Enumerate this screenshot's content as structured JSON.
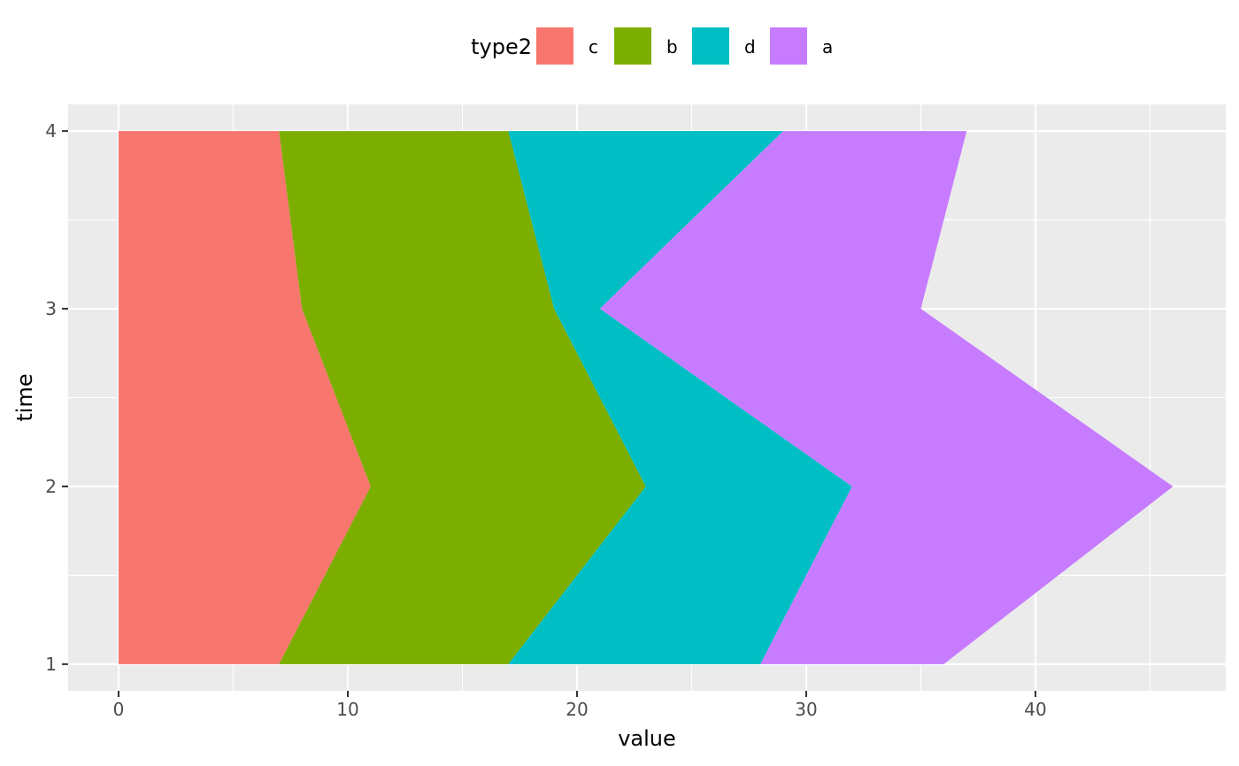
{
  "chart_data": {
    "type": "area",
    "orientation": "horizontal-stacked",
    "xlabel": "value",
    "ylabel": "time",
    "xlim": [
      -2.2,
      48.3
    ],
    "ylim": [
      0.85,
      4.15
    ],
    "x_ticks": [
      0,
      10,
      20,
      30,
      40
    ],
    "x_minor_ticks": [
      5,
      15,
      25,
      35,
      45
    ],
    "y_ticks": [
      1,
      2,
      3,
      4
    ],
    "y_minor_ticks": [
      1.5,
      2.5,
      3.5
    ],
    "grid": true,
    "time": [
      1,
      2,
      3,
      4
    ],
    "legend": {
      "title": "type2",
      "position": "top",
      "order": [
        "c",
        "b",
        "d",
        "a"
      ]
    },
    "series": [
      {
        "name": "c",
        "color": "#F8766D",
        "values": [
          7,
          11,
          8,
          7
        ]
      },
      {
        "name": "b",
        "color": "#7CAE00",
        "values": [
          10,
          12,
          11,
          10
        ]
      },
      {
        "name": "d",
        "color": "#00BFC4",
        "values": [
          11,
          9,
          2,
          12
        ]
      },
      {
        "name": "a",
        "color": "#C77CFF",
        "values": [
          8,
          14,
          14,
          8
        ]
      }
    ]
  }
}
